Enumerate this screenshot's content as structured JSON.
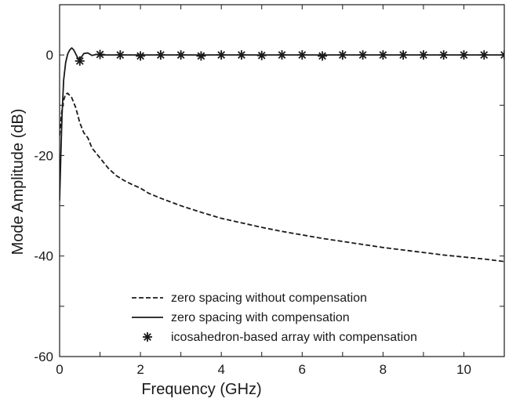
{
  "chart_data": {
    "type": "line",
    "title": "",
    "xlabel": "Frequency (GHz)",
    "ylabel": "Mode Amplitude (dB)",
    "xlim": [
      0,
      11
    ],
    "ylim": [
      -60,
      10
    ],
    "xticks": [
      0,
      2,
      4,
      6,
      8,
      10
    ],
    "yticks": [
      0,
      -20,
      -40,
      -60
    ],
    "x_minor_ticks": [
      1,
      3,
      5,
      7,
      9,
      11
    ],
    "y_minor_ticks": [
      -10,
      -30,
      -50
    ],
    "grid": false,
    "legend_position": "bottom-center",
    "series": [
      {
        "name": "zero spacing without compensation",
        "style": "dashed",
        "x": [
          0.0,
          0.05,
          0.1,
          0.15,
          0.2,
          0.3,
          0.4,
          0.5,
          0.6,
          0.7,
          0.8,
          0.9,
          1.0,
          1.2,
          1.4,
          1.6,
          1.8,
          2.0,
          2.2,
          2.5,
          3.0,
          3.5,
          4.0,
          4.5,
          5.0,
          5.5,
          6.0,
          6.5,
          7.0,
          7.5,
          8.0,
          8.5,
          9.0,
          9.5,
          10.0,
          10.5,
          11.0
        ],
        "y": [
          -16,
          -11.5,
          -9,
          -7.8,
          -7.6,
          -8.5,
          -10.5,
          -13.5,
          -15.5,
          -16.5,
          -18.5,
          -19.5,
          -20.5,
          -22.5,
          -24,
          -25,
          -25.8,
          -26.5,
          -27.5,
          -28.5,
          -30,
          -31.3,
          -32.5,
          -33.4,
          -34.3,
          -35.1,
          -35.8,
          -36.5,
          -37.1,
          -37.7,
          -38.3,
          -38.8,
          -39.3,
          -39.8,
          -40.2,
          -40.6,
          -41.1
        ]
      },
      {
        "name": "zero spacing with compensation",
        "style": "solid",
        "x": [
          0.0,
          0.03,
          0.06,
          0.1,
          0.15,
          0.2,
          0.25,
          0.3,
          0.35,
          0.4,
          0.45,
          0.5,
          0.55,
          0.6,
          0.7,
          0.8,
          0.9,
          1.0,
          1.5,
          2.0,
          3.0,
          4.0,
          5.0,
          6.0,
          7.0,
          8.0,
          9.0,
          10.0,
          11.0
        ],
        "y": [
          -29,
          -20,
          -12,
          -5,
          -1.5,
          0.2,
          1.0,
          1.4,
          1.0,
          0.2,
          -0.6,
          -0.8,
          -0.3,
          0.3,
          0.4,
          -0.1,
          0.1,
          0.0,
          0.0,
          0.0,
          0.0,
          0.0,
          0.0,
          0.0,
          0.0,
          0.0,
          0.0,
          0.0,
          0.0
        ]
      },
      {
        "name": "icosahedron-based array with compensation",
        "style": "markers",
        "marker": "asterisk",
        "x": [
          0.5,
          1.0,
          1.5,
          2.0,
          2.5,
          3.0,
          3.5,
          4.0,
          4.5,
          5.0,
          5.5,
          6.0,
          6.5,
          7.0,
          7.5,
          8.0,
          8.5,
          9.0,
          9.5,
          10.0,
          10.5,
          11.0
        ],
        "y": [
          -1.2,
          0.1,
          0.0,
          -0.2,
          0.0,
          0.0,
          -0.2,
          0.0,
          0.0,
          -0.1,
          0.0,
          0.0,
          -0.2,
          0.0,
          0.0,
          0.0,
          0.0,
          0.0,
          0.0,
          0.0,
          0.0,
          0.0
        ]
      }
    ]
  }
}
